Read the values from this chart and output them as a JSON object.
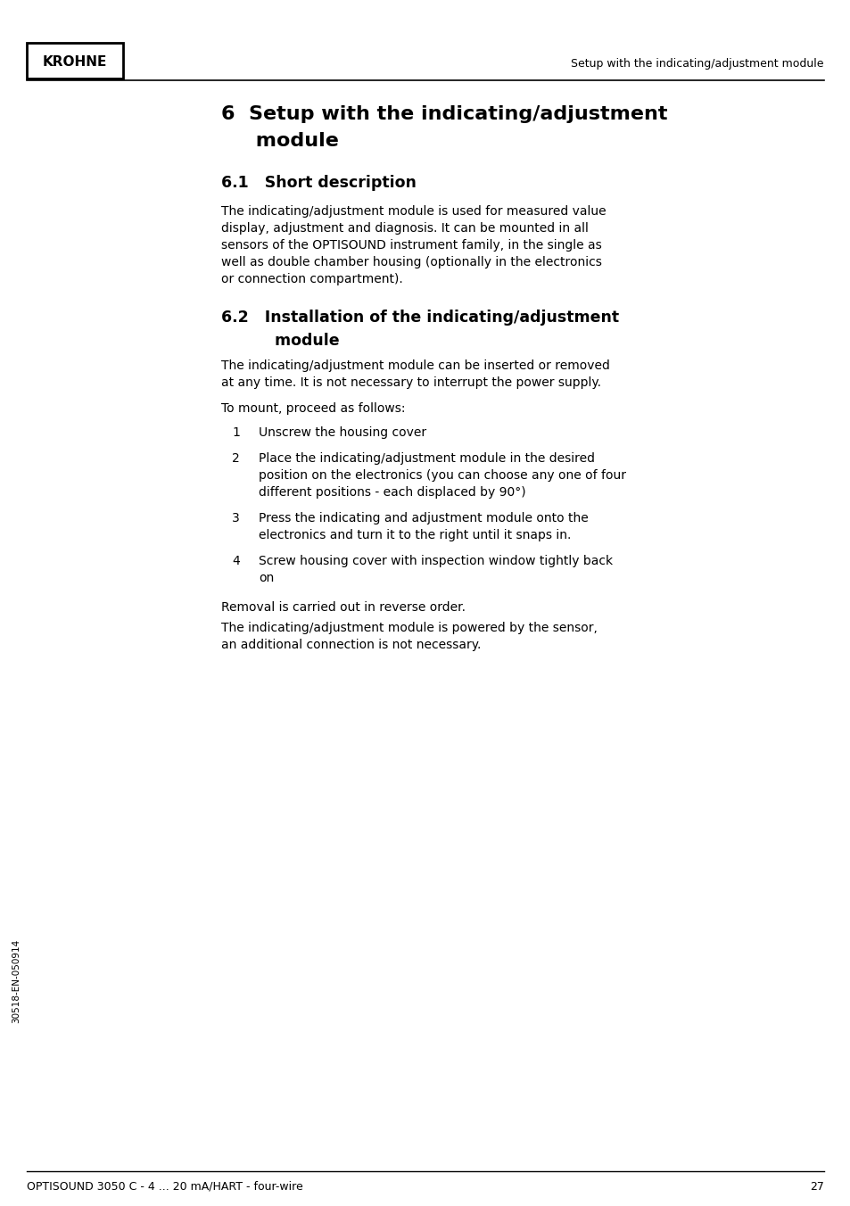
{
  "bg_color": "#ffffff",
  "header_logo_text": "KROHNE",
  "header_right_text": "Setup with the indicating/adjustment module",
  "footer_left_text": "OPTISOUND 3050 C - 4 ... 20 mA/HART - four-wire",
  "footer_right_text": "27",
  "sidebar_text": "30518-EN-050914",
  "chapter_title_1": "6  Setup with the indicating/adjustment",
  "chapter_title_2": "     module",
  "section1_title": "6.1   Short description",
  "section1_lines": [
    "The indicating/adjustment module is used for measured value",
    "display, adjustment and diagnosis. It can be mounted in all",
    "sensors of the OPTISOUND instrument family, in the single as",
    "well as double chamber housing (optionally in the electronics",
    "or connection compartment)."
  ],
  "section2_title_1": "6.2   Installation of the indicating/adjustment",
  "section2_title_2": "          module",
  "section2_body1_lines": [
    "The indicating/adjustment module can be inserted or removed",
    "at any time. It is not necessary to interrupt the power supply."
  ],
  "section2_body2": "To mount, proceed as follows:",
  "list_items": [
    [
      "Unscrew the housing cover"
    ],
    [
      "Place the indicating/adjustment module in the desired",
      "position on the electronics (you can choose any one of four",
      "different positions - each displaced by 90°)"
    ],
    [
      "Press the indicating and adjustment module onto the",
      "electronics and turn it to the right until it snaps in."
    ],
    [
      "Screw housing cover with inspection window tightly back",
      "on"
    ]
  ],
  "section2_body3": "Removal is carried out in reverse order.",
  "section2_body4_lines": [
    "The indicating/adjustment module is powered by the sensor,",
    "an additional connection is not necessary."
  ]
}
